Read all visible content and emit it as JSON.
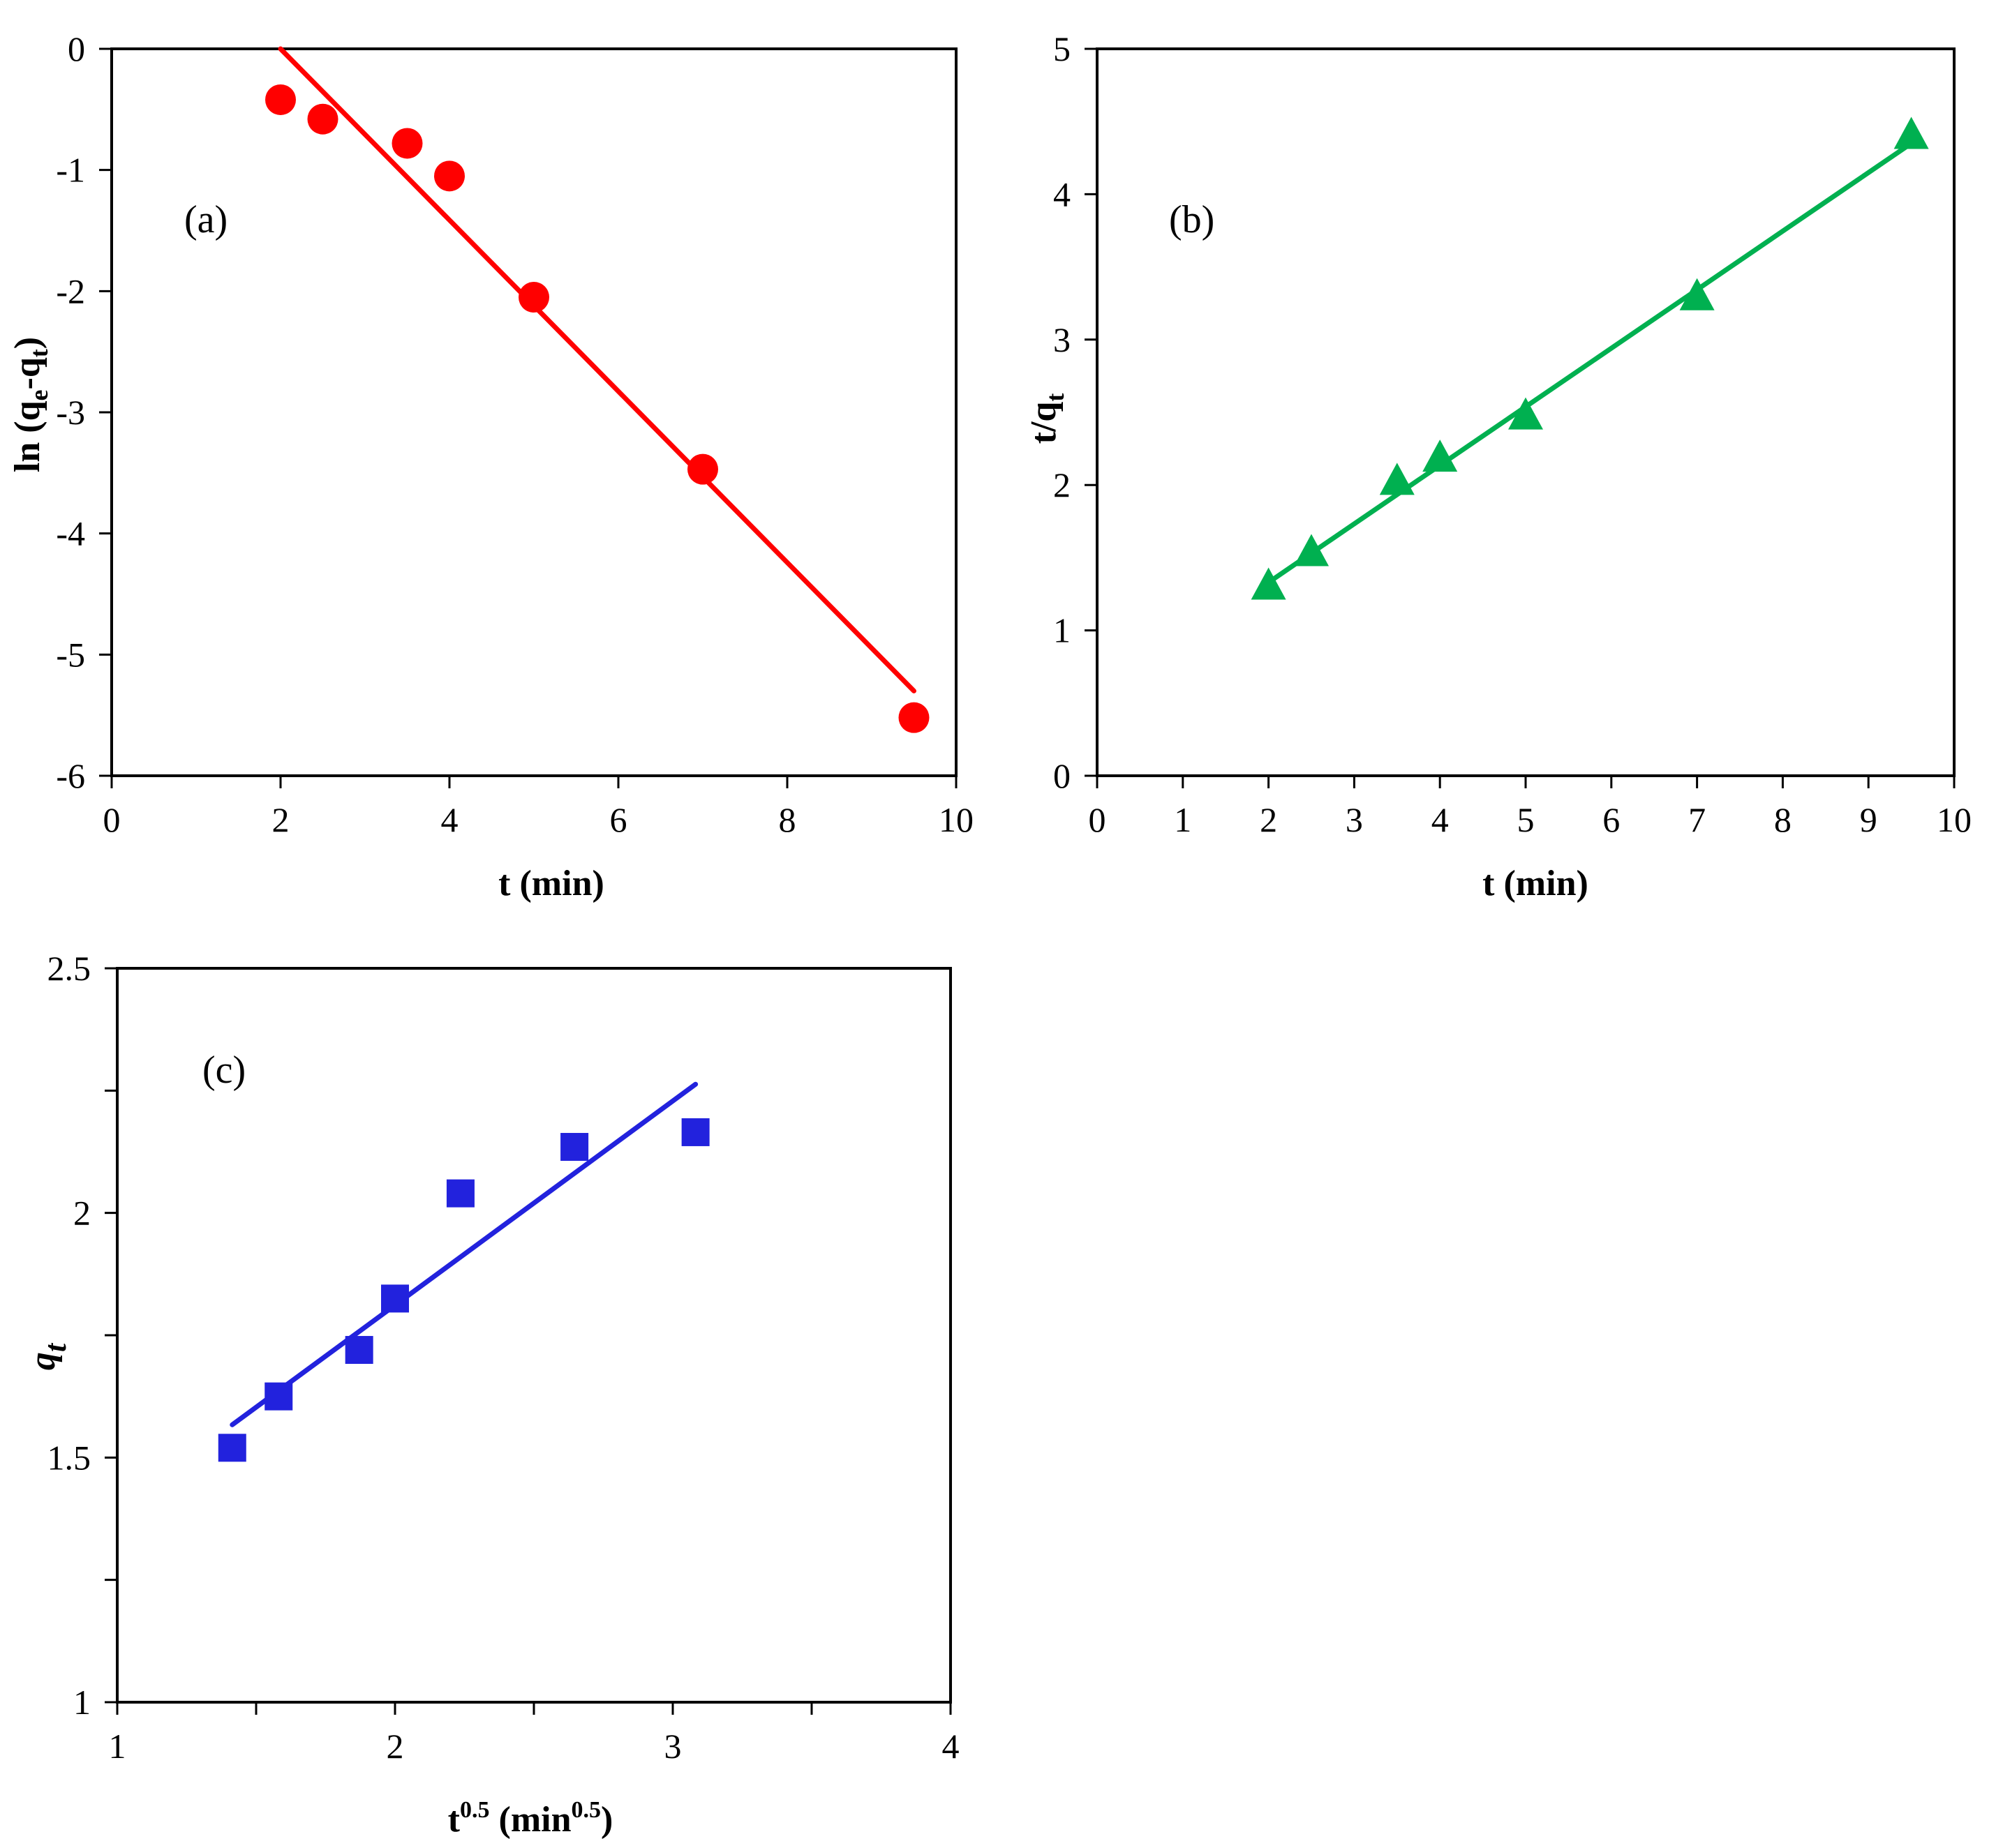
{
  "chart_data": [
    {
      "type": "scatter",
      "panel_label": "(a)",
      "title": "",
      "xlabel": "t (min)",
      "ylabel": {
        "main": "ln (q",
        "sub1": "e",
        "mid": "-q",
        "sub2": "t",
        "end": ")"
      },
      "xlim": [
        0,
        10
      ],
      "ylim": [
        -6,
        0
      ],
      "x_ticks": [
        0,
        2,
        4,
        6,
        8,
        10
      ],
      "y_ticks": [
        0,
        -1,
        -2,
        -3,
        -4,
        -5,
        -6
      ],
      "x_tick_labels": [
        "0",
        "2",
        "4",
        "6",
        "8",
        "10"
      ],
      "y_tick_labels": [
        "0",
        "-1",
        "-2",
        "-3",
        "-4",
        "-5",
        "-6"
      ],
      "color": "#ff0000",
      "marker": "circle",
      "series": [
        {
          "name": "data",
          "x": [
            2,
            2.5,
            3.5,
            4,
            5,
            7,
            9.5
          ],
          "y": [
            -0.42,
            -0.58,
            -0.78,
            -1.05,
            -2.05,
            -3.47,
            -5.52
          ]
        }
      ],
      "fit_line": {
        "x": [
          2,
          9.5
        ],
        "y": [
          0.0,
          -5.3
        ]
      }
    },
    {
      "type": "scatter",
      "panel_label": "(b)",
      "title": "",
      "xlabel": "t (min)",
      "ylabel": {
        "main": "t/q",
        "sub1": "t"
      },
      "xlim": [
        0,
        10
      ],
      "ylim": [
        0,
        5
      ],
      "x_ticks": [
        0,
        1,
        2,
        3,
        4,
        5,
        6,
        7,
        8,
        9,
        10
      ],
      "y_ticks": [
        0,
        1,
        2,
        3,
        4,
        5
      ],
      "x_tick_labels": [
        "0",
        "1",
        "2",
        "3",
        "4",
        "5",
        "6",
        "7",
        "8",
        "9",
        "10"
      ],
      "y_tick_labels": [
        "0",
        "1",
        "2",
        "3",
        "4",
        "5"
      ],
      "color": "#00b050",
      "marker": "triangle",
      "series": [
        {
          "name": "data",
          "x": [
            2,
            2.5,
            3.5,
            4,
            5,
            7,
            9.5
          ],
          "y": [
            1.3,
            1.53,
            2.02,
            2.18,
            2.47,
            3.29,
            4.4
          ]
        }
      ],
      "fit_line": {
        "x": [
          2,
          9.5
        ],
        "y": [
          1.33,
          4.35
        ]
      }
    },
    {
      "type": "scatter",
      "panel_label": "(c)",
      "title": "",
      "xlabel": {
        "main": "t",
        "sup1": "0.5",
        "mid": " (min",
        "sup2": "0.5",
        "end": ")"
      },
      "ylabel": {
        "main": "q",
        "sub1": "t"
      },
      "xlim": [
        1,
        4
      ],
      "ylim": [
        1,
        2.5
      ],
      "x_ticks": [
        1,
        1.5,
        2,
        2.5,
        3,
        3.5,
        4
      ],
      "y_ticks": [
        1,
        1.25,
        1.5,
        1.75,
        2,
        2.25,
        2.5
      ],
      "x_tick_labels": [
        "1",
        "",
        "2",
        "",
        "3",
        "",
        "4"
      ],
      "y_tick_labels": [
        "1",
        "",
        "1.5",
        "",
        "2",
        "",
        "2.5"
      ],
      "color": "#2222dd",
      "marker": "square",
      "series": [
        {
          "name": "data",
          "x": [
            1.414,
            1.581,
            1.871,
            2.0,
            2.236,
            2.646,
            3.082
          ],
          "y": [
            1.52,
            1.625,
            1.72,
            1.825,
            2.04,
            2.135,
            2.165
          ]
        }
      ],
      "fit_line": {
        "x": [
          1.414,
          3.082
        ],
        "y": [
          1.567,
          2.263
        ]
      }
    }
  ]
}
